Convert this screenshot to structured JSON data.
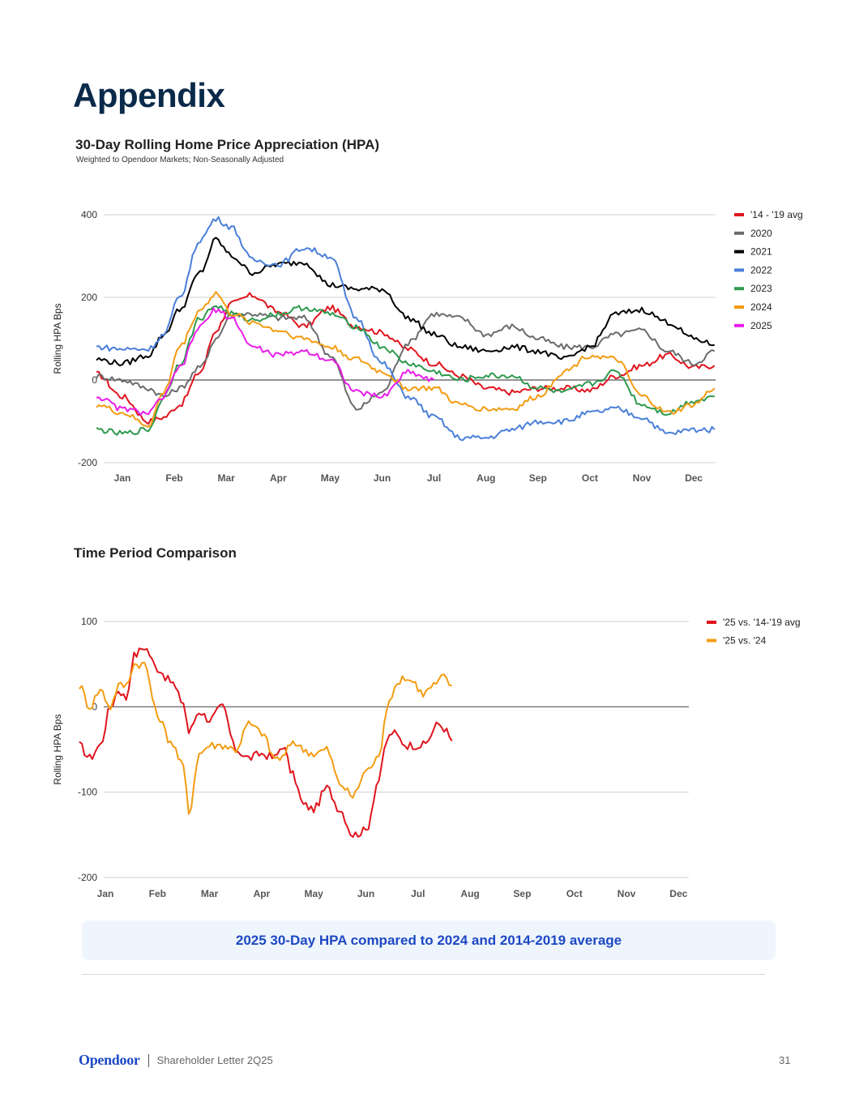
{
  "page": {
    "title": "Appendix",
    "caption": "2025 30-Day HPA compared to 2024 and 2014-2019 average",
    "footer": {
      "brand": "Opendoor",
      "text": "Shareholder Letter 2Q25",
      "page_number": "31"
    }
  },
  "chart_data": [
    {
      "type": "line",
      "title": "30-Day Rolling Home Price Appreciation (HPA)",
      "subtitle": "Weighted to Opendoor Markets; Non-Seasonally Adjusted",
      "xlabel": "",
      "ylabel": "Rolling HPA Bps",
      "ylim": [
        -200,
        400
      ],
      "yticks": [
        400,
        200,
        0,
        -200
      ],
      "ytick_labels": [
        "400",
        "200",
        "0",
        "-200"
      ],
      "x_unit": "month (1 = Jan 1, 13 = Dec 31)",
      "xlim": [
        1,
        13
      ],
      "categories": [
        "Jan",
        "Feb",
        "Mar",
        "Apr",
        "May",
        "Jun",
        "Jul",
        "Aug",
        "Sep",
        "Oct",
        "Nov",
        "Dec"
      ],
      "grid": true,
      "legend": "right",
      "x": [
        1.0,
        1.5,
        2.0,
        2.3,
        2.6,
        3.0,
        3.3,
        3.6,
        4.0,
        4.5,
        5.0,
        5.5,
        6.0,
        6.5,
        7.0,
        7.5,
        8.0,
        8.5,
        9.0,
        9.5,
        10.0,
        10.5,
        11.0,
        11.5,
        12.0,
        12.5,
        12.9
      ],
      "series": [
        {
          "name": "'14 - '19 avg",
          "color": "#e0141e",
          "values": [
            15,
            -40,
            -100,
            -90,
            -60,
            20,
            120,
            185,
            205,
            165,
            130,
            175,
            130,
            115,
            75,
            40,
            10,
            -20,
            -30,
            -20,
            -20,
            -25,
            10,
            35,
            60,
            30,
            35
          ]
        },
        {
          "name": "2020",
          "color": "#6b6b6b",
          "values": [
            10,
            0,
            -20,
            -40,
            -20,
            30,
            100,
            160,
            160,
            150,
            150,
            60,
            -70,
            -30,
            90,
            160,
            150,
            110,
            130,
            100,
            80,
            80,
            110,
            120,
            70,
            40,
            70
          ]
        },
        {
          "name": "2021",
          "color": "#000000",
          "values": [
            50,
            40,
            60,
            110,
            170,
            260,
            340,
            300,
            260,
            280,
            285,
            230,
            220,
            220,
            150,
            110,
            80,
            70,
            80,
            70,
            50,
            80,
            160,
            170,
            140,
            100,
            85
          ]
        },
        {
          "name": "2022",
          "color": "#4a7fd9",
          "values": [
            80,
            75,
            75,
            110,
            200,
            340,
            390,
            370,
            290,
            280,
            320,
            300,
            150,
            40,
            -40,
            -90,
            -140,
            -140,
            -120,
            -100,
            -100,
            -80,
            -70,
            -90,
            -130,
            -120,
            -120
          ]
        },
        {
          "name": "2023",
          "color": "#2e9a4f",
          "values": [
            -120,
            -130,
            -120,
            -40,
            40,
            150,
            180,
            160,
            145,
            160,
            175,
            160,
            130,
            80,
            40,
            20,
            0,
            10,
            10,
            -20,
            -30,
            -10,
            20,
            -60,
            -80,
            -50,
            -40
          ]
        },
        {
          "name": "2024",
          "color": "#f39c12",
          "values": [
            -60,
            -80,
            -110,
            -30,
            80,
            170,
            210,
            160,
            140,
            120,
            100,
            80,
            50,
            20,
            -20,
            -20,
            -60,
            -70,
            -70,
            -40,
            20,
            60,
            50,
            -40,
            -80,
            -60,
            -20
          ]
        },
        {
          "name": "2025",
          "color": "#e81ce8",
          "values": [
            -40,
            -70,
            -80,
            -40,
            30,
            130,
            170,
            150,
            80,
            60,
            70,
            50,
            -30,
            -40,
            20,
            0
          ]
        }
      ]
    },
    {
      "type": "line",
      "title": "Time Period Comparison",
      "xlabel": "",
      "ylabel": "Rolling HPA Bps",
      "ylim": [
        -200,
        100
      ],
      "yticks": [
        100,
        0,
        -100,
        -200
      ],
      "ytick_labels": [
        "100",
        "0",
        "-100",
        "-200"
      ],
      "x_unit": "month (1 = Jan 1, 13 = Dec 31)",
      "xlim": [
        1,
        12.2
      ],
      "categories": [
        "Jan",
        "Feb",
        "Mar",
        "Apr",
        "May",
        "Jun",
        "Jul",
        "Aug",
        "Sep",
        "Oct",
        "Nov",
        "Dec"
      ],
      "grid": true,
      "legend": "top-right",
      "x": [
        1.0,
        1.2,
        1.4,
        1.6,
        1.75,
        1.9,
        2.05,
        2.25,
        2.5,
        2.75,
        3.0,
        3.1,
        3.3,
        3.5,
        3.75,
        4.0,
        4.25,
        4.5,
        4.75,
        4.9,
        5.1,
        5.3,
        5.5,
        5.75,
        6.0,
        6.25,
        6.5,
        6.75,
        6.9
      ],
      "series": [
        {
          "name": "'25 vs. '14-'19 avg",
          "color": "#e0141e",
          "values": [
            -45,
            -60,
            -45,
            0,
            20,
            10,
            60,
            70,
            45,
            30,
            5,
            -30,
            -5,
            -15,
            0,
            -50,
            -60,
            -55,
            -60,
            -45,
            -80,
            -115,
            -120,
            -95,
            -120,
            -150,
            -145,
            -85,
            -40
          ]
        },
        {
          "name": "'25 vs. '24",
          "color": "#f39c12",
          "values": [
            25,
            0,
            20,
            0,
            25,
            25,
            50,
            50,
            -10,
            -40,
            -70,
            -125,
            -55,
            -45,
            -45,
            -50,
            -20,
            -30,
            -60,
            -60,
            -40,
            -50,
            -55,
            -50,
            -90,
            -105,
            -75,
            -60,
            0
          ]
        }
      ]
    }
  ],
  "extra_tail": {
    "chart2_orange_tail_x": [
      7.0,
      7.2,
      7.4,
      7.6,
      7.8,
      8.0,
      8.15
    ],
    "chart2_orange_tail_values": [
      15,
      35,
      30,
      15,
      25,
      35,
      25
    ],
    "chart2_red_tail_x": [
      7.0,
      7.3,
      7.6,
      7.9,
      8.0,
      8.15
    ],
    "chart2_red_tail_values": [
      -30,
      -45,
      -45,
      -20,
      -25,
      -40
    ]
  }
}
